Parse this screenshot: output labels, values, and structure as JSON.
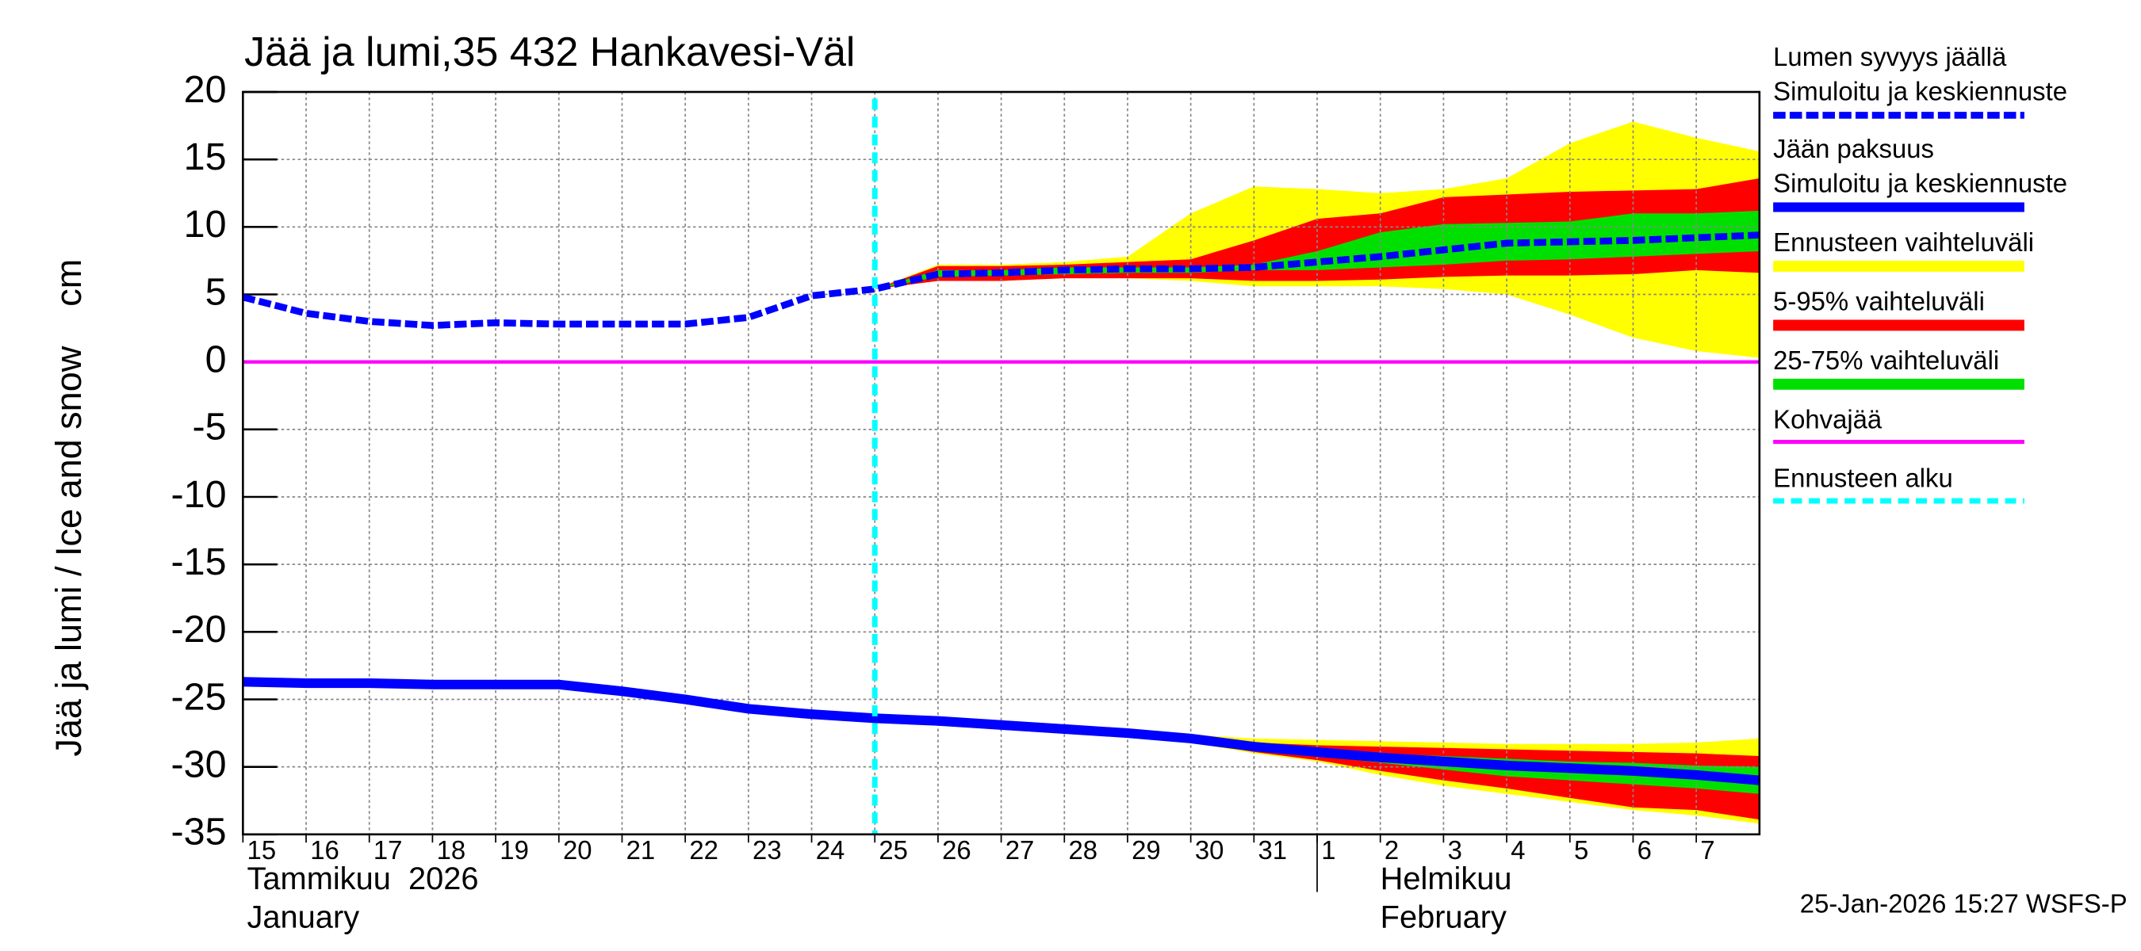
{
  "chart_data": {
    "type": "line",
    "title": "Jää ja lumi,35 432 Hankavesi-Väl",
    "ylabel": "Jää ja lumi / Ice and snow    cm",
    "timestamp": "25-Jan-2026 15:27 WSFS-P",
    "x": [
      0,
      1,
      2,
      3,
      4,
      5,
      6,
      7,
      8,
      9,
      10,
      11,
      12,
      13,
      14,
      15,
      16,
      17,
      18,
      19,
      20,
      21,
      22,
      23,
      24
    ],
    "xlim": [
      0,
      24
    ],
    "xticks": [
      {
        "value": 0,
        "label": "15"
      },
      {
        "value": 1,
        "label": "16"
      },
      {
        "value": 2,
        "label": "17"
      },
      {
        "value": 3,
        "label": "18"
      },
      {
        "value": 4,
        "label": "19"
      },
      {
        "value": 5,
        "label": "20"
      },
      {
        "value": 6,
        "label": "21"
      },
      {
        "value": 7,
        "label": "22"
      },
      {
        "value": 8,
        "label": "23"
      },
      {
        "value": 9,
        "label": "24"
      },
      {
        "value": 10,
        "label": "25"
      },
      {
        "value": 11,
        "label": "26"
      },
      {
        "value": 12,
        "label": "27"
      },
      {
        "value": 13,
        "label": "28"
      },
      {
        "value": 14,
        "label": "29"
      },
      {
        "value": 15,
        "label": "30"
      },
      {
        "value": 16,
        "label": "31"
      },
      {
        "value": 17,
        "label": "1"
      },
      {
        "value": 18,
        "label": "2"
      },
      {
        "value": 19,
        "label": "3"
      },
      {
        "value": 20,
        "label": "4"
      },
      {
        "value": 21,
        "label": "5"
      },
      {
        "value": 22,
        "label": "6"
      },
      {
        "value": 23,
        "label": "7"
      }
    ],
    "months": [
      {
        "value": 0,
        "lines": [
          "Tammikuu  2026",
          "January"
        ]
      },
      {
        "value": 17,
        "lines": [
          "Helmikuu",
          "February"
        ]
      }
    ],
    "ylim": [
      -35,
      20
    ],
    "yticks": [
      -35,
      -30,
      -25,
      -20,
      -15,
      -10,
      -5,
      0,
      5,
      10,
      15,
      20
    ],
    "grid": true,
    "series": [
      {
        "name": "Lumen syvyys jäällä",
        "legend_detail": "Simuloitu ja keskiennuste",
        "color": "#0000ff",
        "style": "dashed",
        "values": [
          4.8,
          3.6,
          3.0,
          2.7,
          2.9,
          2.8,
          2.8,
          2.8,
          3.3,
          4.9,
          5.4,
          6.5,
          6.6,
          6.8,
          6.9,
          6.9,
          7.0,
          7.4,
          7.8,
          8.3,
          8.8,
          8.9,
          9.0,
          9.2,
          9.4
        ]
      },
      {
        "name": "Jään paksuus",
        "legend_detail": "Simuloitu ja keskiennuste",
        "color": "#0000ff",
        "style": "solid",
        "values": [
          -23.7,
          -23.8,
          -23.8,
          -23.9,
          -23.9,
          -23.9,
          -24.4,
          -25.0,
          -25.7,
          -26.1,
          -26.4,
          -26.6,
          -26.9,
          -27.2,
          -27.5,
          -27.9,
          -28.5,
          -28.9,
          -29.3,
          -29.6,
          -29.9,
          -30.1,
          -30.3,
          -30.6,
          -31.0
        ]
      }
    ],
    "bands": [
      {
        "name": "Ennusteen vaihteluväli",
        "color": "#ffff00",
        "ranges": [
          {
            "high": [
              null,
              null,
              null,
              null,
              null,
              null,
              null,
              null,
              null,
              null,
              5.4,
              7.2,
              7.2,
              7.4,
              7.8,
              11,
              13,
              12.8,
              12.5,
              12.8,
              13.6,
              16.2,
              17.8,
              16.6,
              15.6
            ],
            "low": [
              null,
              null,
              null,
              null,
              null,
              null,
              null,
              null,
              null,
              null,
              5.4,
              6.0,
              6.0,
              6.2,
              6.2,
              6.0,
              5.6,
              5.6,
              5.6,
              5.4,
              5.0,
              3.5,
              1.8,
              0.8,
              0.3
            ]
          },
          {
            "high": [
              null,
              null,
              null,
              null,
              null,
              null,
              null,
              null,
              null,
              null,
              -26.4,
              -26.5,
              -26.8,
              -27.0,
              -27.3,
              -27.6,
              -27.9,
              -28.0,
              -28.1,
              -28.2,
              -28.3,
              -28.3,
              -28.3,
              -28.2,
              -27.9
            ],
            "low": [
              null,
              null,
              null,
              null,
              null,
              null,
              null,
              null,
              null,
              null,
              -26.4,
              -26.7,
              -27.0,
              -27.4,
              -27.8,
              -28.2,
              -29.0,
              -29.6,
              -30.6,
              -31.4,
              -32.0,
              -32.6,
              -33.2,
              -33.6,
              -34.2
            ]
          }
        ]
      },
      {
        "name": "5-95% vaihteluväli",
        "color": "#ff0000",
        "ranges": [
          {
            "high": [
              null,
              null,
              null,
              null,
              null,
              null,
              null,
              null,
              null,
              null,
              5.4,
              7.1,
              7.1,
              7.2,
              7.4,
              7.6,
              9.0,
              10.6,
              11.0,
              12.2,
              12.4,
              12.6,
              12.7,
              12.8,
              13.6
            ],
            "low": [
              null,
              null,
              null,
              null,
              null,
              null,
              null,
              null,
              null,
              null,
              5.4,
              6.0,
              6.0,
              6.2,
              6.2,
              6.2,
              6.0,
              6.0,
              6.1,
              6.3,
              6.4,
              6.4,
              6.5,
              6.8,
              6.6
            ]
          },
          {
            "high": [
              null,
              null,
              null,
              null,
              null,
              null,
              null,
              null,
              null,
              null,
              -26.4,
              -26.5,
              -26.8,
              -27.0,
              -27.3,
              -27.7,
              -28.2,
              -28.4,
              -28.5,
              -28.6,
              -28.7,
              -28.8,
              -28.9,
              -29.0,
              -29.2
            ],
            "low": [
              null,
              null,
              null,
              null,
              null,
              null,
              null,
              null,
              null,
              null,
              -26.4,
              -26.7,
              -27.0,
              -27.3,
              -27.7,
              -28.1,
              -28.9,
              -29.5,
              -30.3,
              -31.0,
              -31.6,
              -32.3,
              -33.0,
              -33.2,
              -33.9
            ]
          }
        ]
      },
      {
        "name": "25-75% vaihteluväli",
        "color": "#00e000",
        "ranges": [
          {
            "high": [
              null,
              null,
              null,
              null,
              null,
              null,
              null,
              null,
              null,
              null,
              5.4,
              6.8,
              6.8,
              7.0,
              7.0,
              7.0,
              7.2,
              8.2,
              9.6,
              10.2,
              10.3,
              10.4,
              11.0,
              11.0,
              11.2
            ],
            "low": [
              null,
              null,
              null,
              null,
              null,
              null,
              null,
              null,
              null,
              null,
              5.4,
              6.3,
              6.4,
              6.5,
              6.6,
              6.6,
              6.8,
              6.8,
              7.0,
              7.2,
              7.5,
              7.6,
              7.8,
              8.0,
              8.2
            ]
          },
          {
            "high": [
              null,
              null,
              null,
              null,
              null,
              null,
              null,
              null,
              null,
              null,
              -26.4,
              -26.6,
              -26.9,
              -27.1,
              -27.4,
              -27.8,
              -28.4,
              -28.7,
              -29.0,
              -29.2,
              -29.4,
              -29.6,
              -29.7,
              -29.9,
              -30.0
            ],
            "low": [
              null,
              null,
              null,
              null,
              null,
              null,
              null,
              null,
              null,
              null,
              -26.4,
              -26.7,
              -27.0,
              -27.3,
              -27.6,
              -28.0,
              -28.7,
              -29.2,
              -29.7,
              -30.2,
              -30.7,
              -31.0,
              -31.3,
              -31.6,
              -32.0
            ]
          }
        ]
      }
    ],
    "reference_line": {
      "name": "Kohvajää",
      "color": "#ff00ff",
      "y": 0
    },
    "forecast_start": {
      "name": "Ennusteen alku",
      "color": "#00ffff",
      "x": 10
    }
  }
}
